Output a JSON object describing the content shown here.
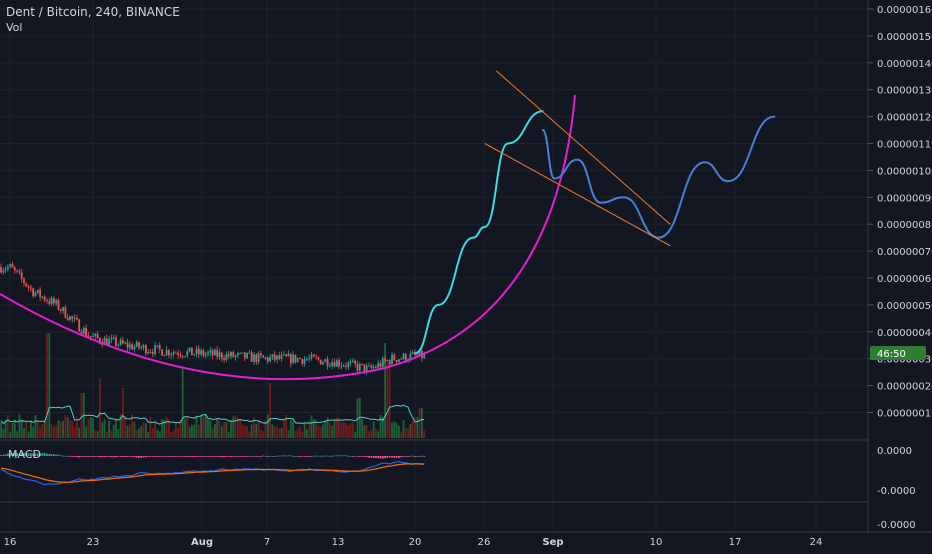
{
  "header": {
    "symbol": "Dent / Bitcoin, 240, BINANCE",
    "volume_label": "Vol",
    "macd_label": "MACD"
  },
  "price_tag": "46:50",
  "colors": {
    "background": "#131722",
    "grid": "#1e222d",
    "axis_text": "#d1d4dc",
    "candle_up": "#26a69a",
    "candle_down": "#ef5350",
    "vol_up": "#1f6b3a",
    "vol_down": "#7a1e1e",
    "vol_ma": "#4fd1c5",
    "macd_line": "#2962ff",
    "signal_line": "#ff6d00",
    "hist_up": "#26a69a",
    "hist_down": "#ff4fa3",
    "cup_curve": "#e020d0",
    "projection": "#3dd9e0",
    "projection_b": "#4a7fd4",
    "channel": "#f57c2c",
    "price_tag_bg": "#2e7d32"
  },
  "chart_data": {
    "type": "line",
    "title": "Dent / Bitcoin, 240, BINANCE",
    "y_axis": {
      "ticks": [
        "0.00000160",
        "0.00000150",
        "0.00000140",
        "0.00000130",
        "0.00000120",
        "0.00000110",
        "0.00000100",
        "0.00000090",
        "0.00000080",
        "0.00000070",
        "0.00000060",
        "0.00000050",
        "0.00000040",
        "0.00000030",
        "0.00000020",
        "0.00000010"
      ],
      "ylim": [
        1e-07,
        1.6e-06
      ]
    },
    "x_axis": {
      "ticks": [
        "16",
        "23",
        "Aug",
        "7",
        "13",
        "20",
        "26",
        "Sep",
        "10",
        "17",
        "24"
      ]
    },
    "price_series": {
      "name": "",
      "x": [
        "Jul 16",
        "Jul 18",
        "Jul 20",
        "Jul 23",
        "Jul 26",
        "Jul 29",
        "Aug 1",
        "Aug 4",
        "Aug 7",
        "Aug 10",
        "Aug 13",
        "Aug 16",
        "Aug 18",
        "Aug 20"
      ],
      "values": [
        6.4e-07,
        5.5e-07,
        5e-07,
        3.8e-07,
        3.5e-07,
        3.3e-07,
        3.2e-07,
        3.1e-07,
        3e-07,
        3e-07,
        2.9e-07,
        2.6e-07,
        3e-07,
        3.1e-07
      ]
    },
    "drawings": {
      "cup_curve": {
        "x": [
          "Jul 13",
          "Jul 23",
          "Aug 1",
          "Aug 10",
          "Aug 18",
          "Aug 26",
          "Aug 30",
          "Sep 1"
        ],
        "values": [
          5e-07,
          3.4e-07,
          2.6e-07,
          2.2e-07,
          2.7e-07,
          5e-07,
          8.5e-07,
          1.28e-06
        ]
      },
      "projection_up": {
        "x": [
          "Aug 20",
          "Aug 22",
          "Aug 25",
          "Aug 26",
          "Aug 28",
          "Aug 31"
        ],
        "values": [
          3.2e-07,
          5e-07,
          7.5e-07,
          7.9e-07,
          1.1e-06,
          1.22e-06
        ]
      },
      "projection_wave": {
        "x": [
          "Aug 31",
          "Sep 1",
          "Sep 3",
          "Sep 5",
          "Sep 7",
          "Sep 10",
          "Sep 14",
          "Sep 16",
          "Sep 20"
        ],
        "values": [
          1.15e-06,
          9.7e-07,
          1.04e-06,
          8.8e-07,
          9e-07,
          7.5e-07,
          1.03e-06,
          9.6e-07,
          1.2e-06
        ]
      },
      "channel_upper": {
        "x": [
          "Aug 27",
          "Sep 11"
        ],
        "values": [
          1.37e-06,
          8e-07
        ]
      },
      "channel_lower": {
        "x": [
          "Aug 26",
          "Sep 11"
        ],
        "values": [
          1.1e-06,
          7.2e-07
        ]
      }
    },
    "macd": {
      "label": "MACD",
      "y_ticks": [
        "0.0000",
        "-0.0000",
        "-0.0000"
      ]
    },
    "grid": true
  }
}
